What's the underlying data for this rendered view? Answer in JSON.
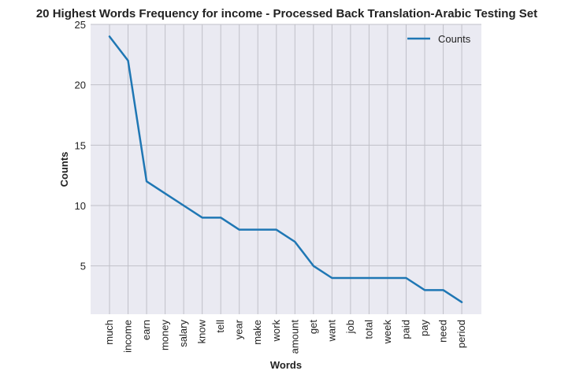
{
  "chart_data": {
    "type": "line",
    "title": "20 Highest Words Frequency for income - Processed Back Translation-Arabic Testing Set",
    "xlabel": "Words",
    "ylabel": "Counts",
    "categories": [
      "much",
      "income",
      "earn",
      "money",
      "salary",
      "know",
      "tell",
      "year",
      "make",
      "work",
      "amount",
      "get",
      "want",
      "job",
      "total",
      "week",
      "paid",
      "pay",
      "need",
      "period"
    ],
    "series": [
      {
        "name": "Counts",
        "values": [
          24,
          22,
          12,
          11,
          10,
          9,
          9,
          8,
          8,
          8,
          7,
          5,
          4,
          4,
          4,
          4,
          4,
          3,
          3,
          2
        ]
      }
    ],
    "ylim": [
      1,
      25
    ],
    "yticks": [
      5,
      10,
      15,
      20,
      25
    ],
    "grid": true,
    "legend_position": "top-right",
    "colors": {
      "line": "#1f77b4",
      "background": "#eaeaf2",
      "grid": "#c0c0c8"
    }
  }
}
